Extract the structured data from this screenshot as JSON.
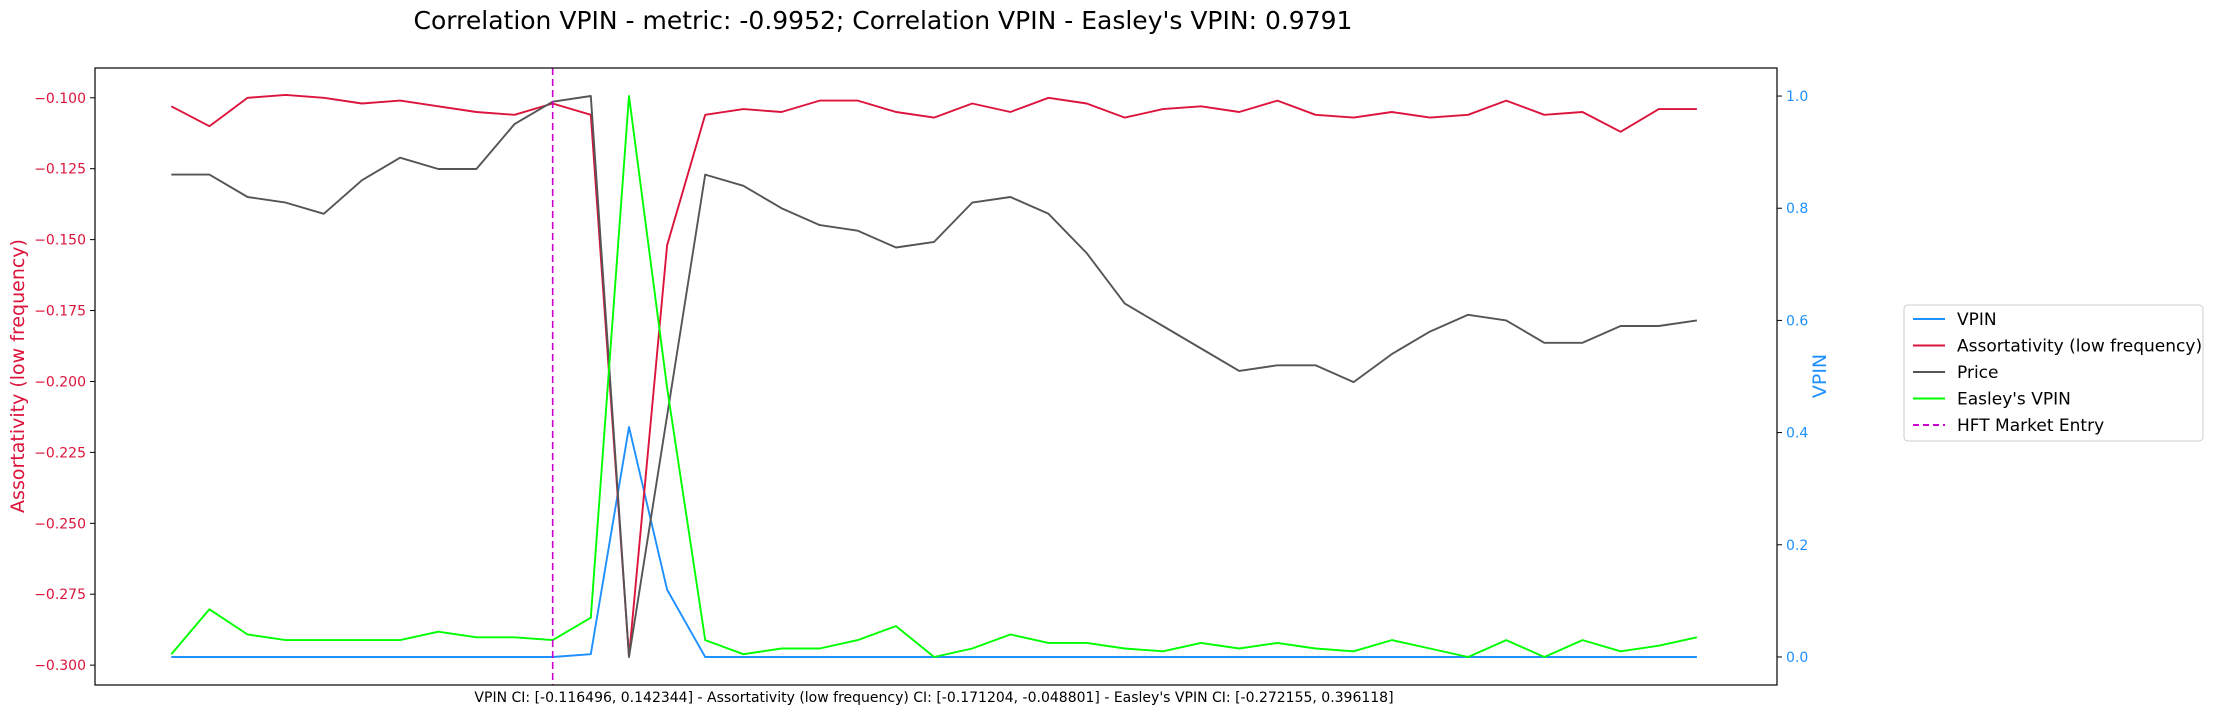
{
  "chart_data": {
    "type": "line",
    "title": "Correlation VPIN - metric: -0.9952; Correlation VPIN - Easley's VPIN: 0.9791",
    "footer": "VPIN CI: [-0.116496, 0.142344] - Assortativity (low frequency) CI: [-0.171204, -0.048801] - Easley's VPIN CI: [-0.272155, 0.396118]",
    "left_axis": {
      "label": "Assortativity (low frequency)",
      "color": "#dc143c",
      "ylim": [
        -0.307,
        -0.0895
      ],
      "ticks": [
        -0.1,
        -0.125,
        -0.15,
        -0.175,
        -0.2,
        -0.225,
        -0.25,
        -0.275,
        -0.3
      ],
      "tick_labels": [
        "−0.100",
        "−0.125",
        "−0.150",
        "−0.175",
        "−0.200",
        "−0.225",
        "−0.250",
        "−0.275",
        "−0.300"
      ]
    },
    "right_axis": {
      "label": "VPIN",
      "color": "#1e90ff",
      "ylim": [
        -0.05,
        1.05
      ],
      "ticks": [
        0.0,
        0.2,
        0.4,
        0.6,
        0.8,
        1.0
      ],
      "tick_labels": [
        "0.0",
        "0.2",
        "0.4",
        "0.6",
        "0.8",
        "1.0"
      ]
    },
    "x": [
      0,
      1,
      2,
      3,
      4,
      5,
      6,
      7,
      8,
      9,
      10,
      11,
      12,
      13,
      14,
      15,
      16,
      17,
      18,
      19,
      20,
      21,
      22,
      23,
      24,
      25,
      26,
      27,
      28,
      29,
      30,
      31,
      32,
      33,
      34,
      35,
      36,
      37,
      38,
      39,
      40
    ],
    "xlim": [
      -2,
      42.1
    ],
    "marker_x": 10,
    "legend_position": "right-outside",
    "series": [
      {
        "name": "VPIN",
        "axis": "right",
        "color": "#1e90ff",
        "values": [
          0.0,
          0.0,
          0.0,
          0.0,
          0.0,
          0.0,
          0.0,
          0.0,
          0.0,
          0.0,
          0.0,
          0.005,
          0.41,
          0.12,
          0.0,
          0.0,
          0.0,
          0.0,
          0.0,
          0.0,
          0.0,
          0.0,
          0.0,
          0.0,
          0.0,
          0.0,
          0.0,
          0.0,
          0.0,
          0.0,
          0.0,
          0.0,
          0.0,
          0.0,
          0.0,
          0.0,
          0.0,
          0.0,
          0.0,
          0.0,
          0.0
        ]
      },
      {
        "name": "Assortativity (low frequency)",
        "axis": "left",
        "color": "#dc143c",
        "values": [
          -0.103,
          -0.11,
          -0.1,
          -0.099,
          -0.1,
          -0.102,
          -0.101,
          -0.103,
          -0.105,
          -0.106,
          -0.102,
          -0.106,
          -0.297,
          -0.152,
          -0.106,
          -0.104,
          -0.105,
          -0.101,
          -0.101,
          -0.105,
          -0.107,
          -0.102,
          -0.105,
          -0.1,
          -0.102,
          -0.107,
          -0.104,
          -0.103,
          -0.105,
          -0.101,
          -0.106,
          -0.107,
          -0.105,
          -0.107,
          -0.106,
          -0.101,
          -0.106,
          -0.105,
          -0.112,
          -0.104,
          -0.104
        ]
      },
      {
        "name": "Price",
        "axis": "right",
        "color": "#555555",
        "values": [
          0.86,
          0.86,
          0.82,
          0.81,
          0.79,
          0.85,
          0.89,
          0.87,
          0.87,
          0.95,
          0.99,
          1.0,
          0.0,
          0.43,
          0.86,
          0.84,
          0.8,
          0.77,
          0.76,
          0.73,
          0.74,
          0.81,
          0.82,
          0.79,
          0.72,
          0.63,
          0.59,
          0.55,
          0.51,
          0.52,
          0.52,
          0.49,
          0.54,
          0.58,
          0.61,
          0.6,
          0.56,
          0.56,
          0.59,
          0.59,
          0.6
        ]
      },
      {
        "name": "Easley's VPIN",
        "axis": "right",
        "color": "#00ff00",
        "values": [
          0.005,
          0.085,
          0.04,
          0.03,
          0.03,
          0.03,
          0.03,
          0.045,
          0.035,
          0.035,
          0.03,
          0.07,
          1.0,
          0.48,
          0.03,
          0.005,
          0.015,
          0.015,
          0.03,
          0.055,
          0.0,
          0.015,
          0.04,
          0.025,
          0.025,
          0.015,
          0.01,
          0.025,
          0.015,
          0.025,
          0.015,
          0.01,
          0.03,
          0.015,
          0.0,
          0.03,
          0.0,
          0.03,
          0.01,
          0.02,
          0.035
        ]
      }
    ],
    "legend": [
      {
        "label": "VPIN",
        "color": "#1e90ff",
        "style": "solid"
      },
      {
        "label": "Assortativity (low frequency)",
        "color": "#dc143c",
        "style": "solid"
      },
      {
        "label": "Price",
        "color": "#555555",
        "style": "solid"
      },
      {
        "label": "Easley's VPIN",
        "color": "#00ff00",
        "style": "solid"
      },
      {
        "label": "HFT Market Entry",
        "color": "#cc00cc",
        "style": "dashed"
      }
    ]
  }
}
